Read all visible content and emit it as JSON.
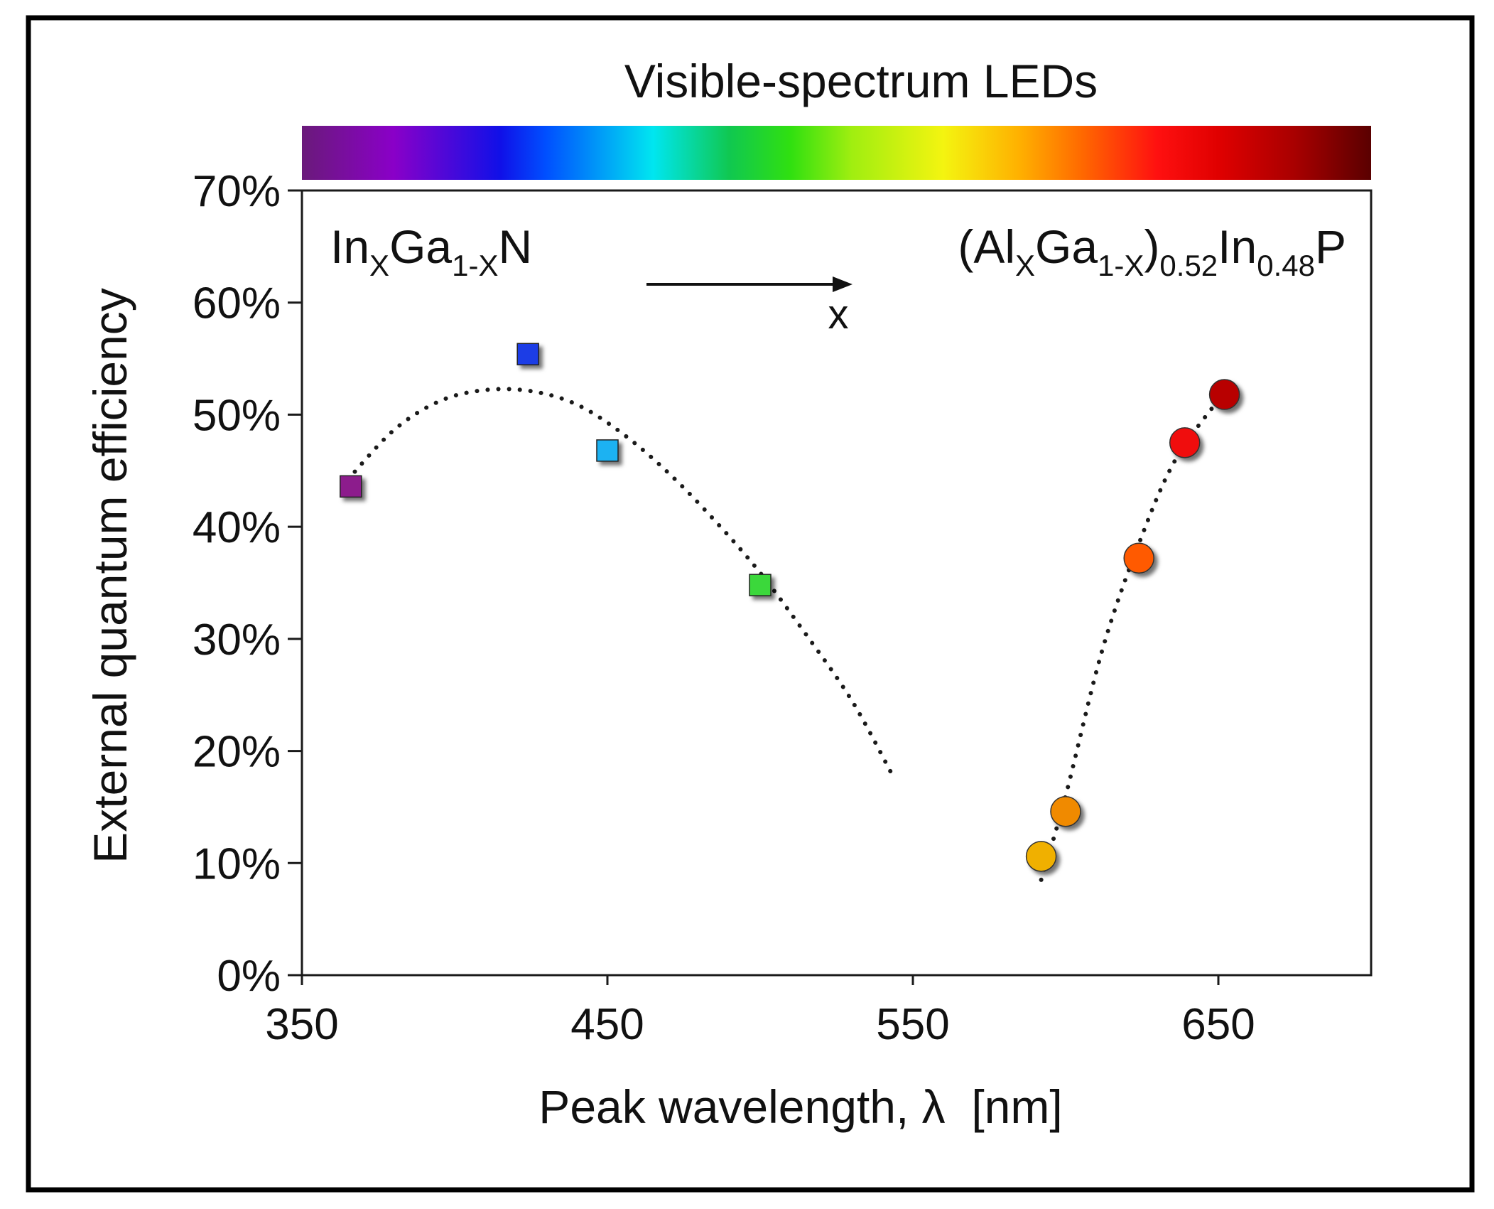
{
  "chart_data": {
    "type": "scatter",
    "title": "Visible-spectrum LEDs",
    "xlabel": "Peak wavelength, λ  [nm]",
    "ylabel": "External quantum efficiency",
    "xlim": [
      350,
      700
    ],
    "ylim": [
      0,
      70
    ],
    "xticks": [
      350,
      450,
      550,
      650
    ],
    "xtick_labels": [
      "350",
      "450",
      "550",
      "650"
    ],
    "yticks": [
      0,
      10,
      20,
      30,
      40,
      50,
      60,
      70
    ],
    "ytick_labels": [
      "0%",
      "10%",
      "20%",
      "30%",
      "40%",
      "50%",
      "60%",
      "70%"
    ],
    "grid": false,
    "spectrum_bar": {
      "range": [
        350,
        700
      ],
      "stops": [
        {
          "nm": 350,
          "color": "#6a1a7a"
        },
        {
          "nm": 380,
          "color": "#8a00c8"
        },
        {
          "nm": 415,
          "color": "#1010e8"
        },
        {
          "nm": 430,
          "color": "#0050ff"
        },
        {
          "nm": 465,
          "color": "#00e6f0"
        },
        {
          "nm": 490,
          "color": "#10c850"
        },
        {
          "nm": 510,
          "color": "#30e010"
        },
        {
          "nm": 530,
          "color": "#a0ee10"
        },
        {
          "nm": 560,
          "color": "#f4f410"
        },
        {
          "nm": 585,
          "color": "#ffb000"
        },
        {
          "nm": 605,
          "color": "#ff6a00"
        },
        {
          "nm": 630,
          "color": "#ff1010"
        },
        {
          "nm": 650,
          "color": "#e00000"
        },
        {
          "nm": 675,
          "color": "#a80000"
        },
        {
          "nm": 700,
          "color": "#5a0000"
        }
      ]
    },
    "series": [
      {
        "name": "InGaN",
        "marker": "square",
        "points": [
          {
            "x": 366,
            "y": 43.6,
            "color": "#8c1a8c"
          },
          {
            "x": 424,
            "y": 55.4,
            "color": "#1a3ee6"
          },
          {
            "x": 450,
            "y": 46.8,
            "color": "#1ab2f2"
          },
          {
            "x": 500,
            "y": 34.8,
            "color": "#3ad83a"
          }
        ],
        "fit": [
          {
            "x": 365,
            "y": 44.2
          },
          {
            "x": 380,
            "y": 48.6
          },
          {
            "x": 395,
            "y": 51.2
          },
          {
            "x": 410,
            "y": 52.2
          },
          {
            "x": 425,
            "y": 52.1
          },
          {
            "x": 440,
            "y": 50.9
          },
          {
            "x": 455,
            "y": 48.3
          },
          {
            "x": 470,
            "y": 44.8
          },
          {
            "x": 485,
            "y": 40.6
          },
          {
            "x": 500,
            "y": 35.9
          },
          {
            "x": 515,
            "y": 30.4
          },
          {
            "x": 530,
            "y": 24.5
          },
          {
            "x": 543,
            "y": 18.0
          }
        ]
      },
      {
        "name": "AlGaInP",
        "marker": "circle",
        "points": [
          {
            "x": 592,
            "y": 10.6,
            "color": "#f0b000"
          },
          {
            "x": 600,
            "y": 14.6,
            "color": "#f08a00"
          },
          {
            "x": 624,
            "y": 37.2,
            "color": "#ff5a00"
          },
          {
            "x": 639,
            "y": 47.5,
            "color": "#f01010"
          },
          {
            "x": 652,
            "y": 51.8,
            "color": "#b80000"
          }
        ],
        "fit": [
          {
            "x": 592,
            "y": 8.5
          },
          {
            "x": 600,
            "y": 16.0
          },
          {
            "x": 612,
            "y": 29.0
          },
          {
            "x": 624,
            "y": 38.5
          },
          {
            "x": 636,
            "y": 46.0
          },
          {
            "x": 652,
            "y": 52.0
          }
        ]
      }
    ],
    "annotations": {
      "left_material": {
        "base1": "In",
        "sub1": "X",
        "base2": "Ga",
        "sub2": "1-X",
        "base3": "N"
      },
      "right_material": {
        "open": "(Al",
        "sub1": "X",
        "base2": "Ga",
        "sub2": "1-X",
        "close": ")",
        "sub3": "0.52",
        "base4": "In",
        "sub4": "0.48",
        "base5": "P"
      },
      "arrow_label": "x"
    }
  }
}
